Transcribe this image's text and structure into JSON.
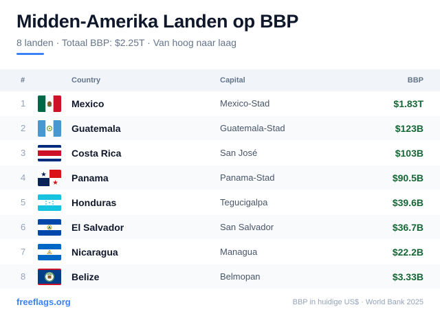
{
  "header": {
    "title": "Midden-Amerika Landen op BBP",
    "subtitle": "8 landen · Totaal BBP: $2.25T · Van hoog naar laag"
  },
  "table": {
    "columns": {
      "num": "#",
      "country": "Country",
      "capital": "Capital",
      "gdp": "BBP"
    },
    "rows": [
      {
        "num": "1",
        "country": "Mexico",
        "capital": "Mexico-Stad",
        "gdp": "$1.83T",
        "flag_icon": "mexico-flag-icon"
      },
      {
        "num": "2",
        "country": "Guatemala",
        "capital": "Guatemala-Stad",
        "gdp": "$123B",
        "flag_icon": "guatemala-flag-icon"
      },
      {
        "num": "3",
        "country": "Costa Rica",
        "capital": "San José",
        "gdp": "$103B",
        "flag_icon": "costa-rica-flag-icon"
      },
      {
        "num": "4",
        "country": "Panama",
        "capital": "Panama-Stad",
        "gdp": "$90.5B",
        "flag_icon": "panama-flag-icon"
      },
      {
        "num": "5",
        "country": "Honduras",
        "capital": "Tegucigalpa",
        "gdp": "$39.6B",
        "flag_icon": "honduras-flag-icon"
      },
      {
        "num": "6",
        "country": "El Salvador",
        "capital": "San Salvador",
        "gdp": "$36.7B",
        "flag_icon": "el-salvador-flag-icon"
      },
      {
        "num": "7",
        "country": "Nicaragua",
        "capital": "Managua",
        "gdp": "$22.2B",
        "flag_icon": "nicaragua-flag-icon"
      },
      {
        "num": "8",
        "country": "Belize",
        "capital": "Belmopan",
        "gdp": "$3.33B",
        "flag_icon": "belize-flag-icon"
      }
    ]
  },
  "footer": {
    "link": "freeflags.org",
    "note": "BBP in huidige US$ · World Bank 2025"
  },
  "colors": {
    "accent": "#3b82f6",
    "gdp_text": "#166534",
    "header_bg": "#f1f5f9",
    "alt_row_bg": "#f8fafc"
  }
}
